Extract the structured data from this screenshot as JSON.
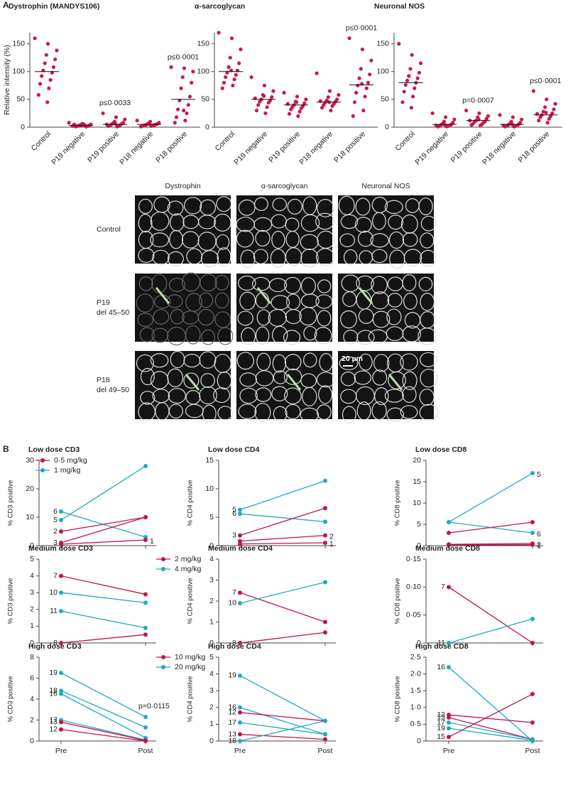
{
  "panel_labels": [
    "A",
    "B"
  ],
  "micrographs": {
    "columns": [
      "Dystrophin",
      "α-sarcoglycan",
      "Neuronal NOS"
    ],
    "rows": [
      [
        "Control"
      ],
      [
        "P19",
        "del 45–50"
      ],
      [
        "P18",
        "del 49–50"
      ]
    ],
    "scale_bar": "20 µm"
  },
  "chart_data": [
    {
      "type": "strip",
      "title": "Dystrophin (MANDYS106)",
      "y_label": "Relative intensity (%)",
      "categories": [
        "Control",
        "P19 negative",
        "P19 positive",
        "P18 negative",
        "P18 positive"
      ],
      "annotations": [
        null,
        null,
        "p≤0·0033",
        null,
        "p≤0·0001"
      ],
      "ylim": [
        0,
        170
      ],
      "yticks": [
        0,
        50,
        100,
        150
      ],
      "color": "#c8194b",
      "means": [
        100,
        3,
        5,
        5,
        50
      ],
      "groups": [
        [
          160,
          150,
          138,
          130,
          122,
          115,
          108,
          102,
          98,
          92,
          85,
          78,
          70,
          58,
          45
        ],
        [
          8,
          6,
          5,
          4,
          3,
          3,
          2,
          2,
          1,
          1,
          4,
          5,
          6,
          2,
          3
        ],
        [
          25,
          18,
          14,
          10,
          8,
          7,
          6,
          5,
          4,
          3,
          2,
          2,
          1,
          5,
          6
        ],
        [
          12,
          10,
          8,
          7,
          6,
          5,
          5,
          4,
          4,
          3,
          3,
          2,
          2,
          1,
          6
        ],
        [
          108,
          106,
          100,
          90,
          80,
          70,
          55,
          48,
          40,
          32,
          25,
          18,
          12,
          8,
          30
        ]
      ]
    },
    {
      "type": "strip",
      "title": "α-sarcoglycan",
      "categories": [
        "Control",
        "P19 negative",
        "P19 positive",
        "P18 negative",
        "P18 positive"
      ],
      "annotations": [
        null,
        null,
        null,
        null,
        "p≤0·0001"
      ],
      "ylim": [
        0,
        170
      ],
      "yticks": [
        0,
        50,
        100,
        150
      ],
      "color": "#c8194b",
      "means": [
        100,
        50,
        40,
        45,
        76
      ],
      "groups": [
        [
          170,
          160,
          140,
          125,
          115,
          108,
          102,
          98,
          94,
          90,
          86,
          80,
          75,
          70,
          102
        ],
        [
          90,
          75,
          65,
          58,
          54,
          50,
          48,
          46,
          44,
          40,
          36,
          30,
          25,
          52,
          56
        ],
        [
          62,
          55,
          50,
          46,
          43,
          40,
          38,
          36,
          34,
          32,
          28,
          24,
          20,
          42,
          45
        ],
        [
          97,
          65,
          58,
          54,
          50,
          48,
          46,
          44,
          42,
          40,
          38,
          35,
          30,
          47,
          45
        ],
        [
          160,
          140,
          120,
          105,
          95,
          88,
          80,
          75,
          70,
          62,
          55,
          45,
          30,
          20,
          78
        ]
      ]
    },
    {
      "type": "strip",
      "title": "Neuronal NOS",
      "categories": [
        "Control",
        "P19 negative",
        "P19 positive",
        "P18 negative",
        "P18 positive"
      ],
      "annotations": [
        null,
        null,
        "p=0·0007",
        null,
        "p≤0·0001"
      ],
      "ylim": [
        0,
        170
      ],
      "yticks": [
        0,
        50,
        100,
        150
      ],
      "color": "#c8194b",
      "means": [
        80,
        5,
        12,
        5,
        22
      ],
      "groups": [
        [
          150,
          130,
          115,
          105,
          98,
          92,
          88,
          84,
          80,
          76,
          70,
          64,
          55,
          45,
          35
        ],
        [
          25,
          18,
          14,
          10,
          8,
          6,
          5,
          4,
          3,
          2,
          2,
          1,
          1,
          3,
          4
        ],
        [
          30,
          25,
          20,
          18,
          15,
          12,
          10,
          10,
          8,
          6,
          5,
          4,
          3,
          12,
          14
        ],
        [
          22,
          18,
          14,
          10,
          8,
          6,
          5,
          4,
          3,
          2,
          2,
          1,
          1,
          3,
          5
        ],
        [
          65,
          50,
          42,
          36,
          32,
          28,
          25,
          22,
          20,
          18,
          15,
          12,
          8,
          24,
          26
        ]
      ]
    },
    {
      "type": "line",
      "title": "Low dose CD3",
      "y_label": "% CD3 positive",
      "ylim": [
        0,
        30
      ],
      "yticks": [
        0,
        10,
        20,
        30
      ],
      "legend": [
        {
          "name": "0·5 mg/kg",
          "color": "#c0154e"
        },
        {
          "name": "1 mg/kg",
          "color": "#1eaac4"
        }
      ],
      "lines": [
        {
          "pre_label": "6",
          "color": "#1eaac4",
          "values": [
            12,
            3
          ]
        },
        {
          "pre_label": "5",
          "color": "#1eaac4",
          "values": [
            9,
            28
          ]
        },
        {
          "pre_label": "2",
          "color": "#c0154e",
          "values": [
            5,
            10
          ]
        },
        {
          "pre_label": "3",
          "color": "#c0154e",
          "values": [
            1,
            10
          ]
        },
        {
          "post_label": "1",
          "color": "#c0154e",
          "values": [
            0.5,
            2
          ]
        }
      ]
    },
    {
      "type": "line",
      "title": "Low dose CD4",
      "y_label": "% CD4 positive",
      "ylim": [
        0,
        15
      ],
      "yticks": [
        0,
        5,
        10,
        15
      ],
      "lines": [
        {
          "pre_label": "5",
          "color": "#1eaac4",
          "values": [
            6.3,
            11.4
          ]
        },
        {
          "pre_label": "6",
          "color": "#1eaac4",
          "values": [
            5.6,
            4.2
          ]
        },
        {
          "pre_label": "3",
          "color": "#c0154e",
          "values": [
            1.8,
            6.6
          ]
        },
        {
          "post_label": "2",
          "color": "#c0154e",
          "values": [
            0.8,
            1.8
          ]
        },
        {
          "post_label": "1",
          "color": "#c0154e",
          "values": [
            0.3,
            0.5
          ]
        }
      ]
    },
    {
      "type": "line",
      "title": "Low dose CD8",
      "y_label": "% CD8 positive",
      "ylim": [
        0,
        20
      ],
      "yticks": [
        0,
        5,
        10,
        15,
        20
      ],
      "lines": [
        {
          "post_label": "5",
          "color": "#1eaac4",
          "values": [
            5.5,
            17
          ]
        },
        {
          "post_label": "6",
          "color": "#1eaac4",
          "values": [
            5.5,
            3
          ]
        },
        {
          "color": "#c0154e",
          "values": [
            3,
            5.5
          ]
        },
        {
          "post_label": "2",
          "color": "#c0154e",
          "values": [
            0.3,
            0.5
          ]
        },
        {
          "post_label": "1",
          "color": "#c0154e",
          "values": [
            0.2,
            0.2
          ]
        }
      ]
    },
    {
      "type": "line",
      "title": "Medium dose CD3",
      "y_label": "% CD3 positive",
      "ylim": [
        0,
        5
      ],
      "yticks": [
        0,
        1,
        2,
        3,
        4,
        5
      ],
      "legend": [
        {
          "name": "2 mg/kg",
          "color": "#c0154e"
        },
        {
          "name": "4 mg/kg",
          "color": "#1eaac4"
        }
      ],
      "lines": [
        {
          "pre_label": "7",
          "color": "#c0154e",
          "values": [
            4,
            2.9
          ]
        },
        {
          "pre_label": "10",
          "color": "#1eaac4",
          "values": [
            3,
            2.4
          ]
        },
        {
          "pre_label": "11",
          "color": "#1eaac4",
          "values": [
            1.9,
            0.9
          ]
        },
        {
          "pre_label": "8",
          "color": "#c0154e",
          "values": [
            0,
            0.5
          ]
        }
      ]
    },
    {
      "type": "line",
      "title": "Medium dose CD4",
      "y_label": "% CD4 positive",
      "ylim": [
        0,
        4
      ],
      "yticks": [
        0,
        1,
        2,
        3,
        4
      ],
      "lines": [
        {
          "pre_label": "7",
          "color": "#c0154e",
          "values": [
            2.4,
            1
          ]
        },
        {
          "pre_label": "10",
          "color": "#1eaac4",
          "values": [
            1.9,
            2.9
          ]
        },
        {
          "pre_label": "8",
          "color": "#c0154e",
          "values": [
            0,
            0.5
          ]
        }
      ]
    },
    {
      "type": "line",
      "title": "Medium dose CD8",
      "y_label": "% CD8 positive",
      "ylim": [
        0,
        0.15
      ],
      "yticks": [
        0,
        {
          "value": 0.05,
          "label": "0·05"
        },
        {
          "value": 0.1,
          "label": "0·10"
        },
        {
          "value": 0.15,
          "label": "0·15"
        }
      ],
      "lines": [
        {
          "pre_label": "7",
          "color": "#c0154e",
          "values": [
            0.1,
            0
          ]
        },
        {
          "pre_label": "11",
          "color": "#1eaac4",
          "values": [
            0,
            0.043
          ]
        }
      ]
    },
    {
      "type": "line",
      "title": "High dose CD3",
      "y_label": "% CD3 positive",
      "ylim": [
        0,
        8
      ],
      "yticks": [
        0,
        2,
        4,
        6,
        8
      ],
      "annotation": "p=0·0115",
      "categories": [
        "Pre",
        "Post"
      ],
      "legend": [
        {
          "name": "10 mg/kg",
          "color": "#c0154e"
        },
        {
          "name": "20 mg/kg",
          "color": "#1eaac4"
        }
      ],
      "lines": [
        {
          "pre_label": "19",
          "color": "#1eaac4",
          "values": [
            6.5,
            2.3
          ]
        },
        {
          "pre_label": "18",
          "color": "#1eaac4",
          "values": [
            4.8,
            1.3
          ]
        },
        {
          "pre_label": "16",
          "color": "#1eaac4",
          "values": [
            4.5,
            0.3
          ]
        },
        {
          "pre_label": "17",
          "color": "#1eaac4",
          "values": [
            2,
            0.1
          ]
        },
        {
          "pre_label": "13",
          "color": "#c0154e",
          "values": [
            1.8,
            0.05
          ]
        },
        {
          "pre_label": "12",
          "color": "#c0154e",
          "values": [
            1.1,
            0
          ]
        }
      ]
    },
    {
      "type": "line",
      "title": "High dose CD4",
      "y_label": "% CD4 positive",
      "ylim": [
        0,
        5
      ],
      "yticks": [
        0,
        1,
        2,
        3,
        4,
        5
      ],
      "categories": [
        "Pre",
        "Post"
      ],
      "lines": [
        {
          "pre_label": "19",
          "color": "#1eaac4",
          "values": [
            3.9,
            1.2
          ]
        },
        {
          "pre_label": "16",
          "color": "#1eaac4",
          "values": [
            2,
            0.4
          ]
        },
        {
          "pre_label": "12",
          "color": "#c0154e",
          "values": [
            1.7,
            1.2
          ]
        },
        {
          "pre_label": "17",
          "color": "#1eaac4",
          "values": [
            1.1,
            0.4
          ]
        },
        {
          "pre_label": "13",
          "color": "#c0154e",
          "values": [
            0.4,
            0.1
          ]
        },
        {
          "pre_label": "18",
          "color": "#1eaac4",
          "values": [
            0,
            1.2
          ]
        }
      ]
    },
    {
      "type": "line",
      "title": "High dose CD8",
      "y_label": "% CD8 positive",
      "ylim": [
        0,
        2.5
      ],
      "yticks": [
        0,
        {
          "value": 0.5,
          "label": "0·5"
        },
        {
          "value": 1,
          "label": "1·0"
        },
        {
          "value": 1.5,
          "label": "1·5"
        },
        {
          "value": 2,
          "label": "2·0"
        },
        {
          "value": 2.5,
          "label": "2·5"
        }
      ],
      "categories": [
        "Pre",
        "Post"
      ],
      "lines": [
        {
          "pre_label": "16",
          "color": "#1eaac4",
          "values": [
            2.2,
            0
          ]
        },
        {
          "pre_label": "12",
          "color": "#c0154e",
          "values": [
            0.78,
            0.55
          ]
        },
        {
          "pre_label": "13",
          "color": "#c0154e",
          "values": [
            0.7,
            0.05
          ]
        },
        {
          "pre_label": "17",
          "color": "#1eaac4",
          "values": [
            0.55,
            0.05
          ]
        },
        {
          "pre_label": "19",
          "color": "#1eaac4",
          "values": [
            0.38,
            0.02
          ]
        },
        {
          "pre_label": "15",
          "color": "#c0154e",
          "values": [
            0.12,
            1.4
          ]
        }
      ]
    }
  ]
}
